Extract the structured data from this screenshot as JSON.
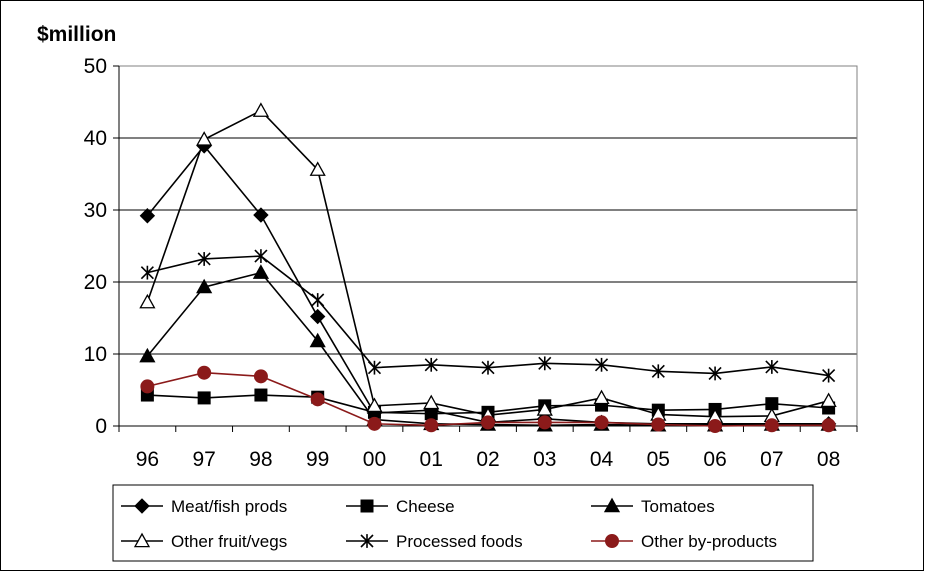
{
  "chart_data": {
    "type": "line",
    "title": "",
    "unit_label": "$million",
    "xlabel": "",
    "ylabel": "$million",
    "categories": [
      "96",
      "97",
      "98",
      "99",
      "00",
      "01",
      "02",
      "03",
      "04",
      "05",
      "06",
      "07",
      "08"
    ],
    "ylim": [
      0,
      50
    ],
    "yticks": [
      0,
      10,
      20,
      30,
      40,
      50
    ],
    "grid": true,
    "legend_position": "bottom",
    "series": [
      {
        "name": "Meat/fish prods",
        "marker": "diamond",
        "color": "#000000",
        "values": [
          29.2,
          38.9,
          29.3,
          15.2,
          1.8,
          2.2,
          0.5,
          1.0,
          0.5,
          0.3,
          0.3,
          0.3,
          0.3
        ]
      },
      {
        "name": "Cheese",
        "marker": "square",
        "color": "#000000",
        "values": [
          4.3,
          3.9,
          4.3,
          4.0,
          1.9,
          1.7,
          1.9,
          2.8,
          2.9,
          2.2,
          2.3,
          3.1,
          2.5
        ]
      },
      {
        "name": "Tomatoes",
        "marker": "triangle",
        "color": "#000000",
        "values": [
          9.7,
          19.3,
          21.3,
          11.8,
          0.9,
          0.3,
          0.2,
          0.1,
          0.2,
          0.1,
          0.1,
          0.2,
          0.2
        ]
      },
      {
        "name": "Other fruit/vegs",
        "marker": "triangle-open",
        "color": "#000000",
        "values": [
          17.2,
          39.8,
          43.8,
          35.6,
          2.8,
          3.2,
          1.5,
          2.3,
          3.9,
          1.6,
          1.3,
          1.4,
          3.5
        ]
      },
      {
        "name": "Processed foods",
        "marker": "star",
        "color": "#000000",
        "values": [
          21.3,
          23.2,
          23.6,
          17.5,
          8.1,
          8.5,
          8.1,
          8.7,
          8.5,
          7.6,
          7.3,
          8.2,
          7.0
        ]
      },
      {
        "name": "Other by-products",
        "marker": "circle",
        "color": "#8B1A1A",
        "values": [
          5.5,
          7.4,
          6.9,
          3.7,
          0.3,
          0.1,
          0.5,
          0.5,
          0.5,
          0.2,
          0.0,
          0.1,
          0.1
        ]
      }
    ]
  }
}
